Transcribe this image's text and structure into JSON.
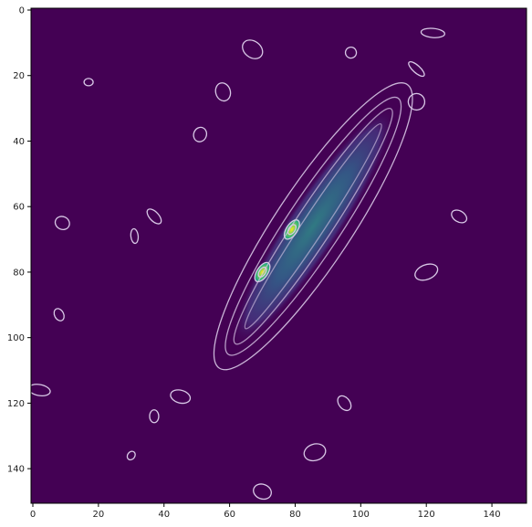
{
  "chart_data": {
    "type": "heatmap",
    "title": "",
    "xlabel": "",
    "ylabel": "",
    "x_range": [
      0,
      150
    ],
    "y_range": [
      0,
      150
    ],
    "y_axis_inverted": true,
    "x_ticks": [
      0,
      20,
      40,
      60,
      80,
      100,
      120,
      140
    ],
    "y_ticks": [
      0,
      20,
      40,
      60,
      80,
      100,
      120,
      140
    ],
    "colormap": "viridis",
    "background_color": "#440154",
    "contour_color": "#d8c8e6",
    "grid": false,
    "legend": "none",
    "peaks": [
      {
        "x": 79,
        "y": 67,
        "intensity": 1.0
      },
      {
        "x": 70,
        "y": 80,
        "intensity": 0.9
      }
    ],
    "ridge": {
      "description": "diagonal density band",
      "start": {
        "x": 63,
        "y": 100
      },
      "end": {
        "x": 108,
        "y": 32
      }
    },
    "isolated_contour_islands": [
      {
        "x": 17,
        "y": 22
      },
      {
        "x": 67,
        "y": 12
      },
      {
        "x": 58,
        "y": 25
      },
      {
        "x": 51,
        "y": 38
      },
      {
        "x": 97,
        "y": 13
      },
      {
        "x": 122,
        "y": 7
      },
      {
        "x": 117,
        "y": 18
      },
      {
        "x": 117,
        "y": 28
      },
      {
        "x": 9,
        "y": 65
      },
      {
        "x": 8,
        "y": 93
      },
      {
        "x": 2,
        "y": 116
      },
      {
        "x": 37,
        "y": 63
      },
      {
        "x": 31,
        "y": 69
      },
      {
        "x": 130,
        "y": 63
      },
      {
        "x": 120,
        "y": 80
      },
      {
        "x": 45,
        "y": 118
      },
      {
        "x": 95,
        "y": 120
      },
      {
        "x": 37,
        "y": 124
      },
      {
        "x": 30,
        "y": 136
      },
      {
        "x": 86,
        "y": 135
      },
      {
        "x": 70,
        "y": 147
      }
    ]
  }
}
